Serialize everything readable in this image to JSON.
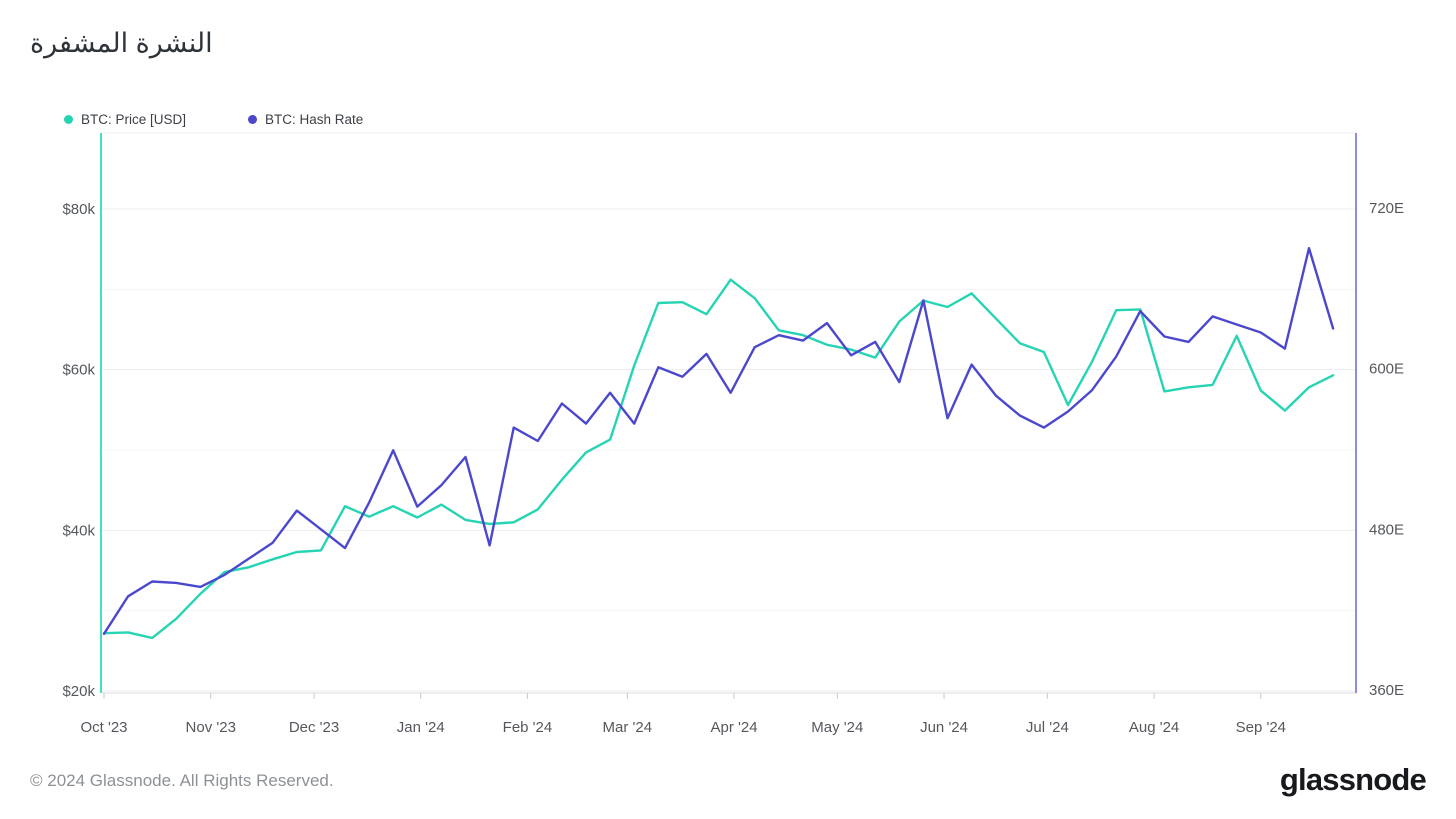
{
  "title": "النشرة المشفرة",
  "legend": [
    {
      "label": "BTC: Price [USD]",
      "color": "#26D4B4"
    },
    {
      "label": "BTC: Hash Rate",
      "color": "#4B48CE"
    }
  ],
  "footer": {
    "copyright": "© 2024 Glassnode. All Rights Reserved.",
    "logo": "glassnode"
  },
  "chart_data": {
    "type": "line",
    "title": "النشرة المشفرة",
    "grid": true,
    "legend_position": "top-left",
    "x": [
      "2023-10-01",
      "2023-10-08",
      "2023-10-15",
      "2023-10-22",
      "2023-10-29",
      "2023-11-05",
      "2023-11-12",
      "2023-11-19",
      "2023-11-26",
      "2023-12-03",
      "2023-12-10",
      "2023-12-17",
      "2023-12-24",
      "2023-12-31",
      "2024-01-07",
      "2024-01-14",
      "2024-01-21",
      "2024-01-28",
      "2024-02-04",
      "2024-02-11",
      "2024-02-18",
      "2024-02-25",
      "2024-03-03",
      "2024-03-10",
      "2024-03-17",
      "2024-03-24",
      "2024-03-31",
      "2024-04-07",
      "2024-04-14",
      "2024-04-21",
      "2024-04-28",
      "2024-05-05",
      "2024-05-12",
      "2024-05-19",
      "2024-05-26",
      "2024-06-02",
      "2024-06-09",
      "2024-06-16",
      "2024-06-23",
      "2024-06-30",
      "2024-07-07",
      "2024-07-14",
      "2024-07-21",
      "2024-07-28",
      "2024-08-04",
      "2024-08-11",
      "2024-08-18",
      "2024-08-25",
      "2024-09-01",
      "2024-09-08",
      "2024-09-15",
      "2024-09-22"
    ],
    "x_tick_labels": [
      "Oct '23",
      "Nov '23",
      "Dec '23",
      "Jan '24",
      "Feb '24",
      "Mar '24",
      "Apr '24",
      "May '24",
      "Jun '24",
      "Jul '24",
      "Aug '24",
      "Sep '24"
    ],
    "series": [
      {
        "name": "BTC: Price [USD]",
        "axis": "left",
        "unit": "USD (thousands)",
        "color": "#26D4B4",
        "values": [
          27.2,
          27.3,
          26.6,
          29.0,
          32.1,
          34.8,
          35.4,
          36.4,
          37.3,
          37.5,
          43.0,
          41.7,
          43.0,
          41.6,
          43.2,
          41.3,
          40.8,
          41.0,
          42.6,
          46.3,
          49.7,
          51.3,
          60.5,
          68.3,
          68.4,
          66.9,
          71.2,
          68.9,
          64.9,
          64.3,
          63.1,
          62.5,
          61.5,
          66.0,
          68.6,
          67.8,
          69.5,
          66.4,
          63.3,
          62.2,
          55.6,
          61.0,
          67.4,
          67.5,
          57.3,
          57.8,
          58.1,
          64.2,
          57.4,
          54.9,
          57.8,
          59.3
        ]
      },
      {
        "name": "BTC: Hash Rate",
        "axis": "right",
        "unit": "EH/s",
        "color": "#4B48CE",
        "values": [
          402,
          430,
          441,
          440,
          437,
          446,
          458,
          470,
          494,
          480,
          466,
          500,
          539,
          497,
          513,
          534,
          468,
          556,
          546,
          574,
          559,
          582,
          559,
          601,
          594,
          611,
          582,
          616,
          625,
          621,
          634,
          610,
          620,
          590,
          651,
          563,
          603,
          580,
          565,
          556,
          568,
          584,
          609,
          643,
          624,
          620,
          639,
          633,
          627,
          615,
          690,
          630
        ]
      }
    ],
    "left_axis": {
      "unit": "$k",
      "ticks": [
        {
          "label": "$80k",
          "value": 80
        },
        {
          "label": "$60k",
          "value": 60
        },
        {
          "label": "$40k",
          "value": 40
        },
        {
          "label": "$20k",
          "value": 20
        }
      ],
      "minor_values": [
        70,
        50,
        30
      ],
      "range_note": "labels $20k-$80k"
    },
    "right_axis": {
      "unit": "EH/s",
      "ticks": [
        {
          "label": "720E",
          "value": 720
        },
        {
          "label": "600E",
          "value": 600
        },
        {
          "label": "480E",
          "value": 480
        },
        {
          "label": "360E",
          "value": 360
        }
      ]
    }
  },
  "colors": {
    "price_line": "#26D4B4",
    "hash_line": "#4B48CE",
    "left_axis_line": "#45DFC5",
    "right_axis_line": "#8F8DE0",
    "grid_major": "#ededf0",
    "grid_minor": "#f5f5f8",
    "axis_text": "#54585d"
  }
}
